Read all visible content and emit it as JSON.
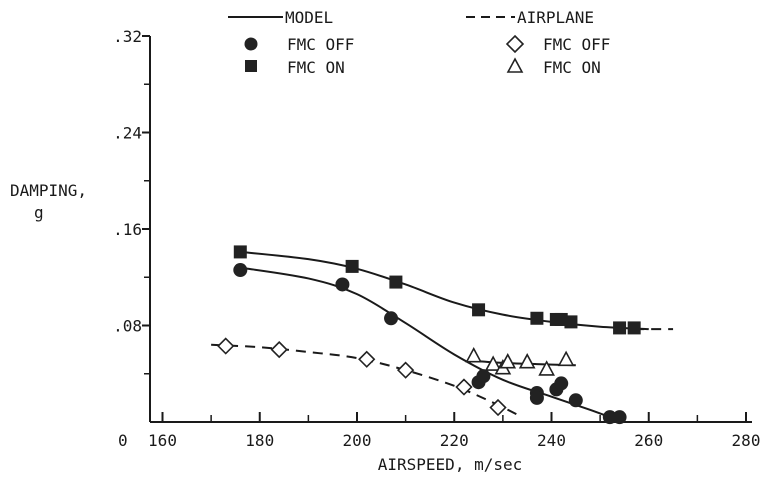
{
  "chart_data": {
    "type": "scatter",
    "xlabel": "AIRSPEED, m/sec",
    "ylabel_line1": "DAMPING,",
    "ylabel_line2": "g",
    "origin_label": "0",
    "xlim": [
      160,
      280
    ],
    "ylim": [
      0,
      0.32
    ],
    "x_ticks": [
      {
        "value": 160,
        "label": "160"
      },
      {
        "value": 180,
        "label": "180"
      },
      {
        "value": 200,
        "label": "200"
      },
      {
        "value": 220,
        "label": "220"
      },
      {
        "value": 240,
        "label": "240"
      },
      {
        "value": 260,
        "label": "260"
      },
      {
        "value": 280,
        "label": "280"
      }
    ],
    "y_ticks": [
      {
        "value": 0.08,
        "label": ".08"
      },
      {
        "value": 0.16,
        "label": ".16"
      },
      {
        "value": 0.24,
        "label": ".24"
      },
      {
        "value": 0.32,
        "label": ".32"
      }
    ],
    "legend": {
      "model_label": "MODEL",
      "airplane_label": "AIRPLANE",
      "model_off_label": "FMC OFF",
      "model_on_label": "FMC ON",
      "airplane_off_label": "FMC OFF",
      "airplane_on_label": "FMC ON"
    },
    "series": [
      {
        "name": "MODEL, FMC OFF",
        "marker": "circle",
        "points": [
          [
            176,
            0.126
          ],
          [
            197,
            0.114
          ],
          [
            207,
            0.086
          ],
          [
            225,
            0.033
          ],
          [
            226,
            0.038
          ],
          [
            237,
            0.024
          ],
          [
            237,
            0.02
          ],
          [
            241,
            0.027
          ],
          [
            242,
            0.032
          ],
          [
            245,
            0.018
          ],
          [
            252,
            0.004
          ],
          [
            254,
            0.004
          ]
        ]
      },
      {
        "name": "MODEL, FMC ON",
        "marker": "square",
        "points": [
          [
            176,
            0.141
          ],
          [
            199,
            0.129
          ],
          [
            208,
            0.116
          ],
          [
            225,
            0.093
          ],
          [
            237,
            0.086
          ],
          [
            241,
            0.085
          ],
          [
            242,
            0.085
          ],
          [
            244,
            0.083
          ],
          [
            254,
            0.078
          ],
          [
            257,
            0.078
          ]
        ]
      },
      {
        "name": "AIRPLANE, FMC OFF",
        "marker": "diamond-open",
        "points": [
          [
            173,
            0.063
          ],
          [
            184,
            0.06
          ],
          [
            202,
            0.052
          ],
          [
            210,
            0.043
          ],
          [
            222,
            0.029
          ],
          [
            229,
            0.012
          ]
        ]
      },
      {
        "name": "AIRPLANE, FMC ON",
        "marker": "triangle-open",
        "points": [
          [
            224,
            0.055
          ],
          [
            228,
            0.048
          ],
          [
            230,
            0.045
          ],
          [
            231,
            0.05
          ],
          [
            235,
            0.05
          ],
          [
            239,
            0.044
          ],
          [
            243,
            0.052
          ]
        ]
      }
    ],
    "curves": [
      {
        "name": "MODEL, FMC OFF curve",
        "style": "solid",
        "points": [
          [
            176,
            0.128
          ],
          [
            190,
            0.119
          ],
          [
            200,
            0.106
          ],
          [
            210,
            0.082
          ],
          [
            220,
            0.056
          ],
          [
            230,
            0.035
          ],
          [
            240,
            0.021
          ],
          [
            248,
            0.01
          ],
          [
            252,
            0.004
          ]
        ]
      },
      {
        "name": "MODEL, FMC ON curve",
        "style": "solid",
        "points": [
          [
            176,
            0.141
          ],
          [
            190,
            0.135
          ],
          [
            200,
            0.127
          ],
          [
            210,
            0.114
          ],
          [
            220,
            0.099
          ],
          [
            230,
            0.089
          ],
          [
            240,
            0.083
          ],
          [
            250,
            0.079
          ],
          [
            260,
            0.077
          ]
        ]
      },
      {
        "name": "MODEL, FMC ON extension",
        "style": "dashed",
        "points": [
          [
            257,
            0.077
          ],
          [
            265,
            0.077
          ]
        ]
      },
      {
        "name": "AIRPLANE, FMC OFF curve",
        "style": "dashed",
        "points": [
          [
            170,
            0.064
          ],
          [
            180,
            0.062
          ],
          [
            190,
            0.058
          ],
          [
            200,
            0.053
          ],
          [
            210,
            0.043
          ],
          [
            220,
            0.03
          ],
          [
            228,
            0.016
          ],
          [
            234,
            0.004
          ]
        ]
      },
      {
        "name": "AIRPLANE, FMC ON curve",
        "style": "solid",
        "points": [
          [
            223,
            0.051
          ],
          [
            230,
            0.049
          ],
          [
            237,
            0.048
          ],
          [
            245,
            0.047
          ]
        ]
      }
    ]
  }
}
